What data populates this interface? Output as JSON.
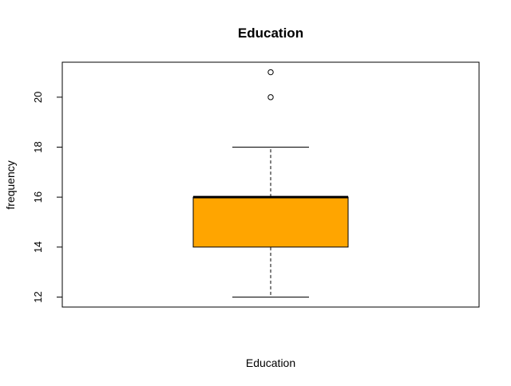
{
  "chart_data": {
    "type": "box",
    "title": "Education",
    "xlabel": "Education",
    "ylabel": "frequency",
    "ylim": [
      11.6,
      21.4
    ],
    "yticks": [
      12,
      14,
      16,
      18,
      20
    ],
    "box": {
      "min": 12,
      "q1": 14,
      "median": 16,
      "q3": 16,
      "max": 18,
      "outliers": [
        20,
        21
      ]
    },
    "box_color": "#FFA500",
    "grid": false,
    "legend": "none"
  }
}
